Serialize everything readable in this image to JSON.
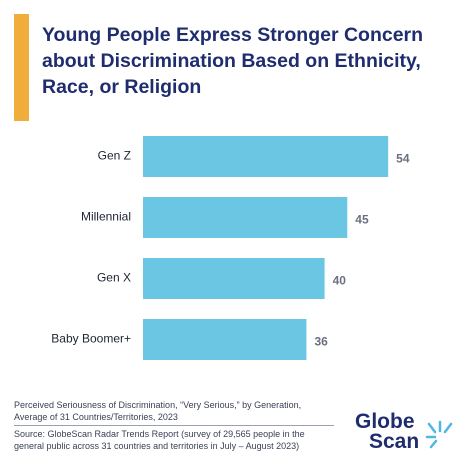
{
  "chart_data": {
    "type": "bar",
    "orientation": "horizontal",
    "title": "Young People Express Stronger Concern about Discrimination Based on Ethnicity, Race, or Religion",
    "categories": [
      "Gen Z",
      "Millennial",
      "Gen X",
      "Baby Boomer+"
    ],
    "values": [
      54,
      45,
      40,
      36
    ],
    "color": "#6ac6e3",
    "note": "Perceived Seriousness of Discrimination, “Very Serious,” by Generation, Average of 31 Countries/Territories, 2023",
    "source": "Source: GlobeScan Radar Trends Report (survey of 29,565 people in the general public across 31 countries and territories in July – August 2023)",
    "logo": [
      "Globe",
      "Scan"
    ]
  }
}
